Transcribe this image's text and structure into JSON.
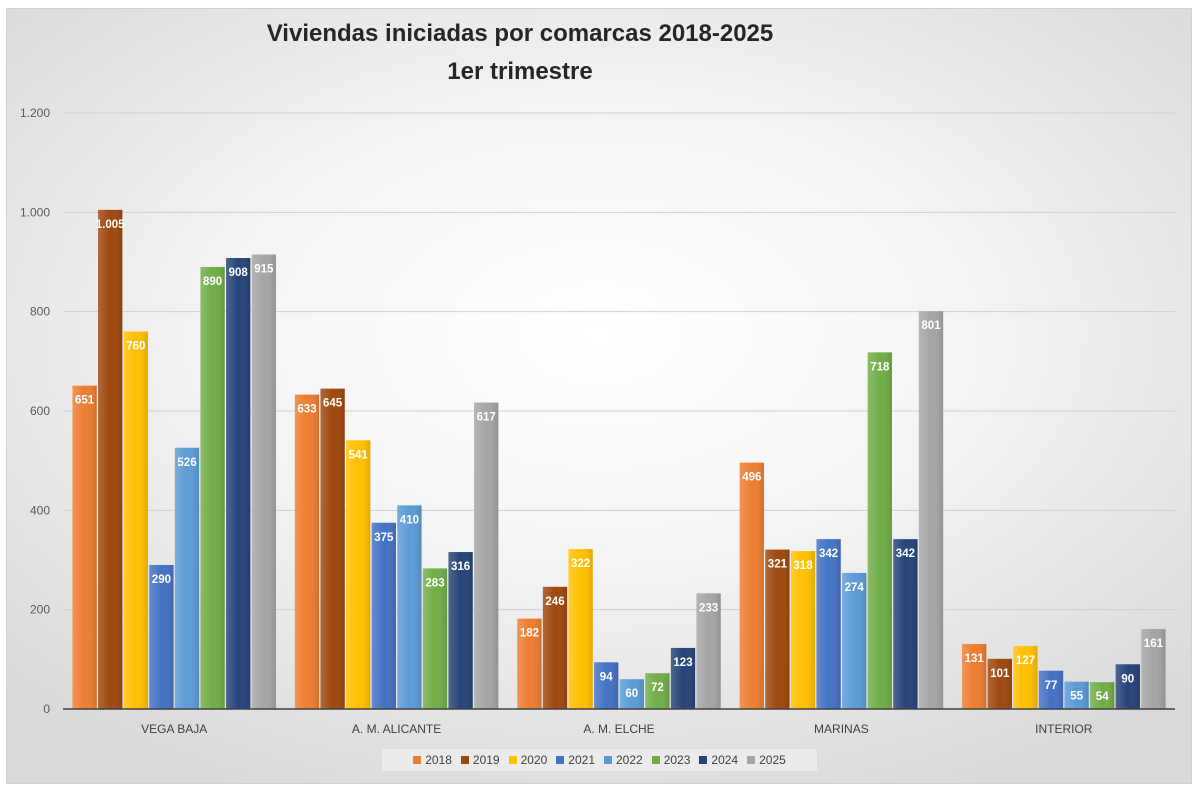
{
  "chart_data": {
    "type": "bar",
    "title": "Viviendas iniciadas por comarcas 2018-2025",
    "subtitle": "1er trimestre",
    "xlabel": "",
    "ylabel": "",
    "categories": [
      "VEGA BAJA",
      "A. M. ALICANTE",
      "A. M. ELCHE",
      "MARINAS",
      "INTERIOR"
    ],
    "ylim": [
      0,
      1200
    ],
    "yticks": [
      0,
      200,
      400,
      600,
      800,
      1000,
      1200
    ],
    "ytick_labels": [
      "0",
      "200",
      "400",
      "600",
      "800",
      "1.000",
      "1.200"
    ],
    "grid": true,
    "legend_position": "bottom",
    "series": [
      {
        "name": "2018",
        "color": "#ED7D31",
        "values": [
          651,
          633,
          182,
          496,
          131
        ],
        "labels": [
          "651",
          "633",
          "182",
          "496",
          "131"
        ]
      },
      {
        "name": "2019",
        "color": "#9E480E",
        "values": [
          1005,
          645,
          246,
          321,
          101
        ],
        "labels": [
          "1.005",
          "645",
          "246",
          "321",
          "101"
        ]
      },
      {
        "name": "2020",
        "color": "#FFC000",
        "values": [
          760,
          541,
          322,
          318,
          127
        ],
        "labels": [
          "760",
          "541",
          "322",
          "318",
          "127"
        ]
      },
      {
        "name": "2021",
        "color": "#4472C4",
        "values": [
          290,
          375,
          94,
          342,
          77
        ],
        "labels": [
          "290",
          "375",
          "94",
          "342",
          "77"
        ]
      },
      {
        "name": "2022",
        "color": "#5B9BD5",
        "values": [
          526,
          410,
          60,
          274,
          55
        ],
        "labels": [
          "526",
          "410",
          "60",
          "274",
          "55"
        ]
      },
      {
        "name": "2023",
        "color": "#70AD47",
        "values": [
          890,
          283,
          72,
          718,
          54
        ],
        "labels": [
          "890",
          "283",
          "72",
          "718",
          "54"
        ]
      },
      {
        "name": "2024",
        "color": "#264478",
        "values": [
          908,
          316,
          123,
          342,
          90
        ],
        "labels": [
          "908",
          "316",
          "123",
          "342",
          "90"
        ]
      },
      {
        "name": "2025",
        "color": "#A5A5A5",
        "values": [
          915,
          617,
          233,
          801,
          161
        ],
        "labels": [
          "915",
          "617",
          "233",
          "801",
          "161"
        ]
      }
    ]
  }
}
